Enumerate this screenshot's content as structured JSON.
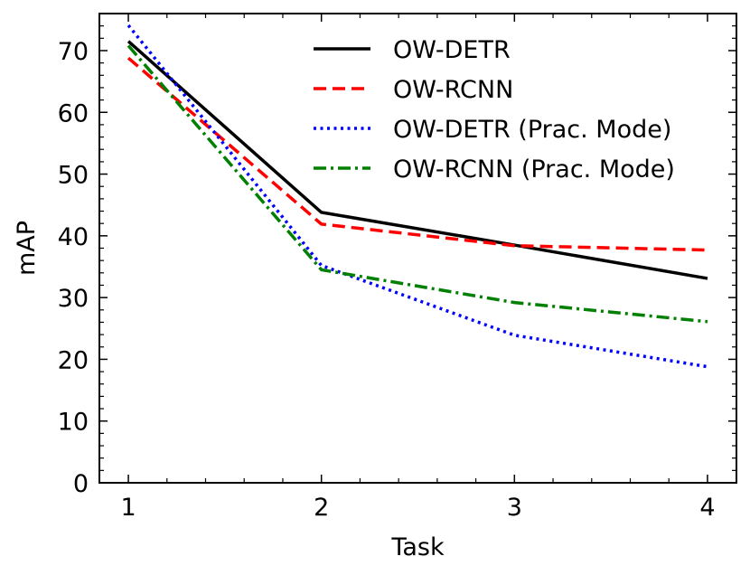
{
  "chart_data": {
    "type": "line",
    "title": "",
    "xlabel": "Task",
    "ylabel": "mAP",
    "x": [
      1,
      2,
      3,
      4
    ],
    "xticks": [
      "1",
      "2",
      "3",
      "4"
    ],
    "yticks": [
      "0",
      "10",
      "20",
      "30",
      "40",
      "50",
      "60",
      "70"
    ],
    "xlim": [
      0.85,
      4.15
    ],
    "ylim": [
      0,
      76
    ],
    "grid": false,
    "legend_position": "top-right",
    "series": [
      {
        "name": "OW-DETR",
        "color": "#000000",
        "dash": "solid",
        "values": [
          71.5,
          43.8,
          38.5,
          33.1
        ]
      },
      {
        "name": "OW-RCNN",
        "color": "#ff0000",
        "dash": "dashed",
        "values": [
          68.8,
          41.9,
          38.4,
          37.7
        ]
      },
      {
        "name": "OW-DETR (Prac. Mode)",
        "color": "#0000ff",
        "dash": "dotted",
        "values": [
          74.1,
          35.2,
          23.9,
          18.8
        ]
      },
      {
        "name": "OW-RCNN (Prac. Mode)",
        "color": "#008000",
        "dash": "dashdot",
        "values": [
          70.8,
          34.5,
          29.2,
          26.1
        ]
      }
    ]
  }
}
